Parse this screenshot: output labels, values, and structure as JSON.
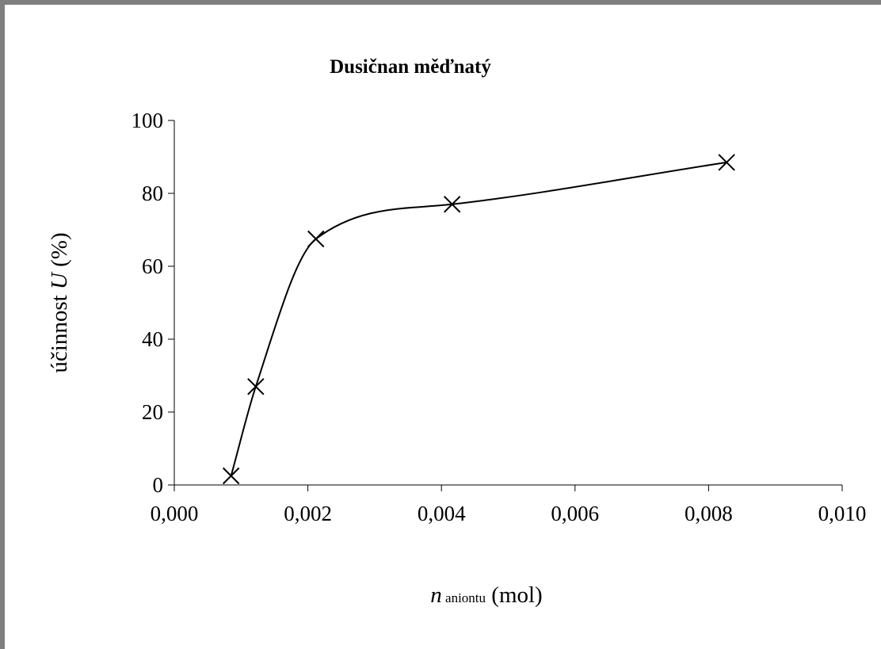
{
  "chart_data": {
    "type": "line",
    "title": "Dusičnan měďnatý",
    "ylabel": {
      "prefix": "účinnost ",
      "var": "U",
      "suffix": " (%)"
    },
    "xlabel": {
      "var": "n",
      "sub": " aniontu",
      "suffix": " (mol)"
    },
    "xlim": [
      0,
      0.01
    ],
    "ylim": [
      0,
      100
    ],
    "x_ticks": [
      "0,000",
      "0,002",
      "0,004",
      "0,006",
      "0,008",
      "0,010"
    ],
    "y_ticks": [
      "0",
      "20",
      "40",
      "60",
      "80",
      "100"
    ],
    "marker": "x",
    "line_style": "smoothed",
    "grid": false,
    "series": [
      {
        "points": [
          {
            "x": 0.00085,
            "y": 2.5
          },
          {
            "x": 0.00122,
            "y": 27
          },
          {
            "x": 0.00212,
            "y": 67.5
          },
          {
            "x": 0.00416,
            "y": 77
          },
          {
            "x": 0.00827,
            "y": 88.5
          }
        ]
      }
    ]
  }
}
